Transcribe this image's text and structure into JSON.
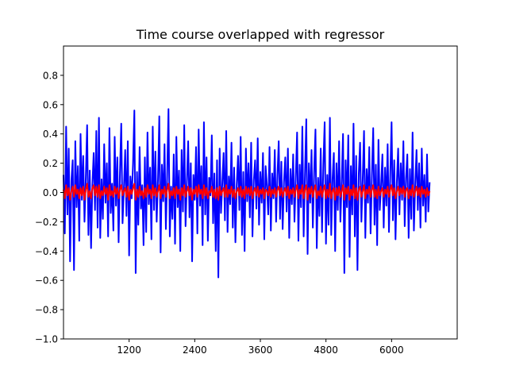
{
  "chart_data": {
    "type": "line",
    "title": "Time course overlapped with regressor",
    "xlabel": "",
    "ylabel": "",
    "xlim": [
      0,
      7200
    ],
    "ylim": [
      -1.0,
      1.0
    ],
    "x_ticks": [
      1200,
      2400,
      3600,
      4800,
      6000
    ],
    "x_tick_labels": [
      "1200",
      "2400",
      "3600",
      "4800",
      "6000"
    ],
    "y_ticks": [
      -1.0,
      -0.8,
      -0.6,
      -0.4,
      -0.2,
      0.0,
      0.2,
      0.4,
      0.6,
      0.8
    ],
    "y_tick_labels": [
      "−1.0",
      "−0.8",
      "−0.6",
      "−0.4",
      "−0.2",
      "0.0",
      "0.2",
      "0.4",
      "0.6",
      "0.8"
    ],
    "grid": false,
    "legend": "none",
    "x_start": 0,
    "x_step": 24,
    "series": [
      {
        "color": "#0000ff",
        "values": [
          0.12,
          -0.28,
          0.45,
          -0.15,
          0.3,
          -0.47,
          0.08,
          0.22,
          -0.53,
          0.35,
          -0.1,
          0.18,
          -0.33,
          0.4,
          -0.05,
          0.25,
          -0.2,
          0.1,
          0.46,
          -0.29,
          0.15,
          -0.38,
          0.05,
          0.27,
          -0.12,
          0.42,
          -0.24,
          0.51,
          -0.31,
          0.09,
          -0.18,
          0.33,
          -0.07,
          0.2,
          -0.3,
          0.44,
          -0.14,
          0.06,
          -0.26,
          0.38,
          -0.09,
          0.24,
          -0.34,
          0.13,
          0.47,
          -0.21,
          0.02,
          0.29,
          -0.16,
          0.35,
          -0.43,
          0.11,
          -0.04,
          0.2,
          0.56,
          -0.55,
          0.14,
          -0.22,
          0.31,
          -0.11,
          0.05,
          -0.36,
          0.24,
          -0.27,
          0.41,
          -0.08,
          0.17,
          -0.32,
          0.45,
          -0.12,
          0.28,
          -0.2,
          0.09,
          0.52,
          -0.41,
          0.19,
          -0.06,
          0.33,
          -0.25,
          0.12,
          0.57,
          -0.3,
          0.04,
          -0.18,
          0.26,
          -0.35,
          0.38,
          -0.1,
          0.15,
          -0.4,
          0.29,
          -0.13,
          0.46,
          -0.23,
          0.07,
          0.35,
          -0.17,
          0.2,
          -0.47,
          0.12,
          -0.05,
          0.31,
          -0.28,
          0.43,
          -0.09,
          0.18,
          -0.36,
          0.48,
          -0.15,
          0.24,
          -0.33,
          0.1,
          -0.02,
          0.39,
          -0.21,
          0.13,
          -0.4,
          0.22,
          -0.58,
          0.3,
          -0.14,
          0.06,
          0.27,
          -0.19,
          0.42,
          -0.27,
          0.11,
          -0.08,
          0.34,
          -0.24,
          0.17,
          -0.34,
          0.05,
          0.25,
          -0.12,
          0.38,
          -0.29,
          0.14,
          -0.4,
          0.3,
          -0.06,
          0.2,
          -0.17,
          0.34,
          -0.3,
          0.08,
          0.22,
          -0.11,
          0.37,
          -0.22,
          0.14,
          -0.07,
          0.27,
          -0.32,
          0.18,
          0.05,
          -0.15,
          0.31,
          -0.26,
          0.13,
          -0.04,
          0.29,
          -0.2,
          0.11,
          0.35,
          -0.18,
          0.21,
          -0.25,
          0.07,
          0.24,
          -0.13,
          0.3,
          -0.31,
          0.16,
          -0.08,
          0.26,
          -0.2,
          0.1,
          0.41,
          -0.33,
          0.19,
          -0.1,
          0.45,
          -0.3,
          0.12,
          0.5,
          -0.42,
          0.2,
          -0.07,
          0.29,
          -0.24,
          0.14,
          0.43,
          -0.38,
          0.1,
          -0.16,
          0.3,
          -0.27,
          0.19,
          0.48,
          -0.35,
          0.12,
          -0.22,
          0.51,
          -0.29,
          0.09,
          0.27,
          -0.4,
          0.2,
          -0.12,
          0.35,
          -0.2,
          0.08,
          0.4,
          -0.55,
          0.22,
          -0.1,
          0.39,
          -0.44,
          0.18,
          -0.15,
          0.47,
          -0.3,
          0.25,
          -0.53,
          0.13,
          0.34,
          -0.2,
          0.09,
          0.42,
          -0.31,
          0.16,
          -0.07,
          0.31,
          -0.28,
          0.11,
          0.44,
          -0.22,
          0.19,
          -0.36,
          0.36,
          -0.12,
          0.05,
          0.26,
          -0.24,
          0.17,
          -0.09,
          0.33,
          -0.27,
          0.12,
          0.48,
          -0.19,
          0.22,
          -0.32,
          0.07,
          0.3,
          -0.15,
          0.2,
          -0.05,
          0.35,
          -0.23,
          0.1,
          0.26,
          -0.31,
          0.16,
          -0.18,
          0.41,
          -0.26,
          0.05,
          0.29,
          -0.12,
          0.2,
          -0.24,
          0.3,
          -0.09,
          0.12,
          -0.2,
          0.26,
          -0.13,
          0.07
        ]
      },
      {
        "color": "#ff0000",
        "values": [
          0.02,
          -0.04,
          0.05,
          -0.02,
          0.03,
          -0.05,
          0.01,
          0.04,
          -0.03,
          0.05,
          -0.01,
          0.02,
          -0.04,
          0.03,
          -0.02,
          0.04,
          -0.05,
          0.02,
          0.06,
          -0.03,
          0.01,
          -0.04,
          0.03,
          0.05,
          -0.02,
          0.04,
          -0.03,
          0.05,
          -0.04,
          0.01,
          -0.02,
          0.04,
          -0.01,
          0.03,
          -0.05,
          0.05,
          -0.02,
          0.01,
          -0.03,
          0.04,
          -0.01,
          0.03,
          -0.04,
          0.02,
          0.05,
          -0.02,
          0.01,
          0.03,
          -0.03,
          0.04,
          -0.05,
          0.02,
          -0.01,
          0.03,
          0.06,
          -0.05,
          0.02,
          -0.03,
          0.04,
          -0.02,
          0.01,
          -0.04,
          0.03,
          -0.03,
          0.05,
          -0.01,
          0.02,
          -0.04,
          0.05,
          -0.02,
          0.03,
          -0.03,
          0.01,
          0.05,
          -0.04,
          0.02,
          -0.01,
          0.04,
          -0.03,
          0.02,
          0.06,
          -0.04,
          0.01,
          -0.02,
          0.03,
          -0.04,
          0.04,
          -0.01,
          0.02,
          -0.05,
          0.03,
          -0.02,
          0.05,
          -0.03,
          0.01,
          0.04,
          -0.02,
          0.03,
          -0.05,
          0.02,
          -0.01,
          0.04,
          -0.03,
          0.05,
          -0.01,
          0.02,
          -0.04,
          0.05,
          -0.02,
          0.03,
          -0.04,
          0.01,
          0.0,
          0.04,
          -0.03,
          0.02,
          -0.04,
          0.03,
          -0.05,
          0.04,
          -0.02,
          0.01,
          0.03,
          -0.03,
          0.05,
          -0.03,
          0.02,
          -0.01,
          0.04,
          -0.03,
          0.02,
          -0.04,
          0.01,
          0.03,
          -0.02,
          0.04,
          -0.03,
          0.02,
          -0.04,
          0.04,
          -0.01,
          0.03,
          -0.02,
          0.04,
          -0.04,
          0.01,
          0.03,
          -0.02,
          0.04,
          -0.03,
          0.02,
          -0.01,
          0.03,
          -0.04,
          0.02,
          0.01,
          -0.02,
          0.04,
          -0.03,
          0.02,
          -0.01,
          0.03,
          -0.03,
          0.02,
          0.04,
          -0.02,
          0.03,
          -0.03,
          0.01,
          0.03,
          -0.02,
          0.04,
          -0.04,
          0.02,
          -0.01,
          0.03,
          -0.03,
          0.02,
          0.05,
          -0.04,
          0.02,
          -0.01,
          0.05,
          -0.04,
          0.02,
          0.05,
          -0.05,
          0.03,
          -0.01,
          0.04,
          -0.03,
          0.02,
          0.05,
          -0.04,
          0.01,
          -0.02,
          0.04,
          -0.03,
          0.02,
          0.05,
          -0.04,
          0.02,
          -0.03,
          0.06,
          -0.04,
          0.01,
          0.03,
          -0.05,
          0.03,
          -0.02,
          0.04,
          -0.03,
          0.01,
          0.05,
          -0.05,
          0.03,
          -0.01,
          0.04,
          -0.05,
          0.02,
          -0.02,
          0.05,
          -0.04,
          0.03,
          -0.05,
          0.02,
          0.04,
          -0.03,
          0.01,
          0.05,
          -0.04,
          0.02,
          -0.01,
          0.04,
          -0.03,
          0.02,
          0.05,
          -0.03,
          0.02,
          -0.04,
          0.04,
          -0.02,
          0.01,
          0.03,
          -0.03,
          0.02,
          -0.01,
          0.04,
          -0.03,
          0.02,
          0.05,
          -0.02,
          0.03,
          -0.04,
          0.01,
          0.04,
          -0.02,
          0.03,
          -0.01,
          0.04,
          -0.03,
          0.02,
          0.03,
          -0.04,
          0.02,
          -0.02,
          0.05,
          -0.03,
          0.01,
          0.04,
          -0.02,
          0.03,
          -0.03,
          0.04,
          -0.01,
          0.02,
          -0.03,
          0.03,
          -0.02,
          0.01
        ]
      }
    ]
  }
}
